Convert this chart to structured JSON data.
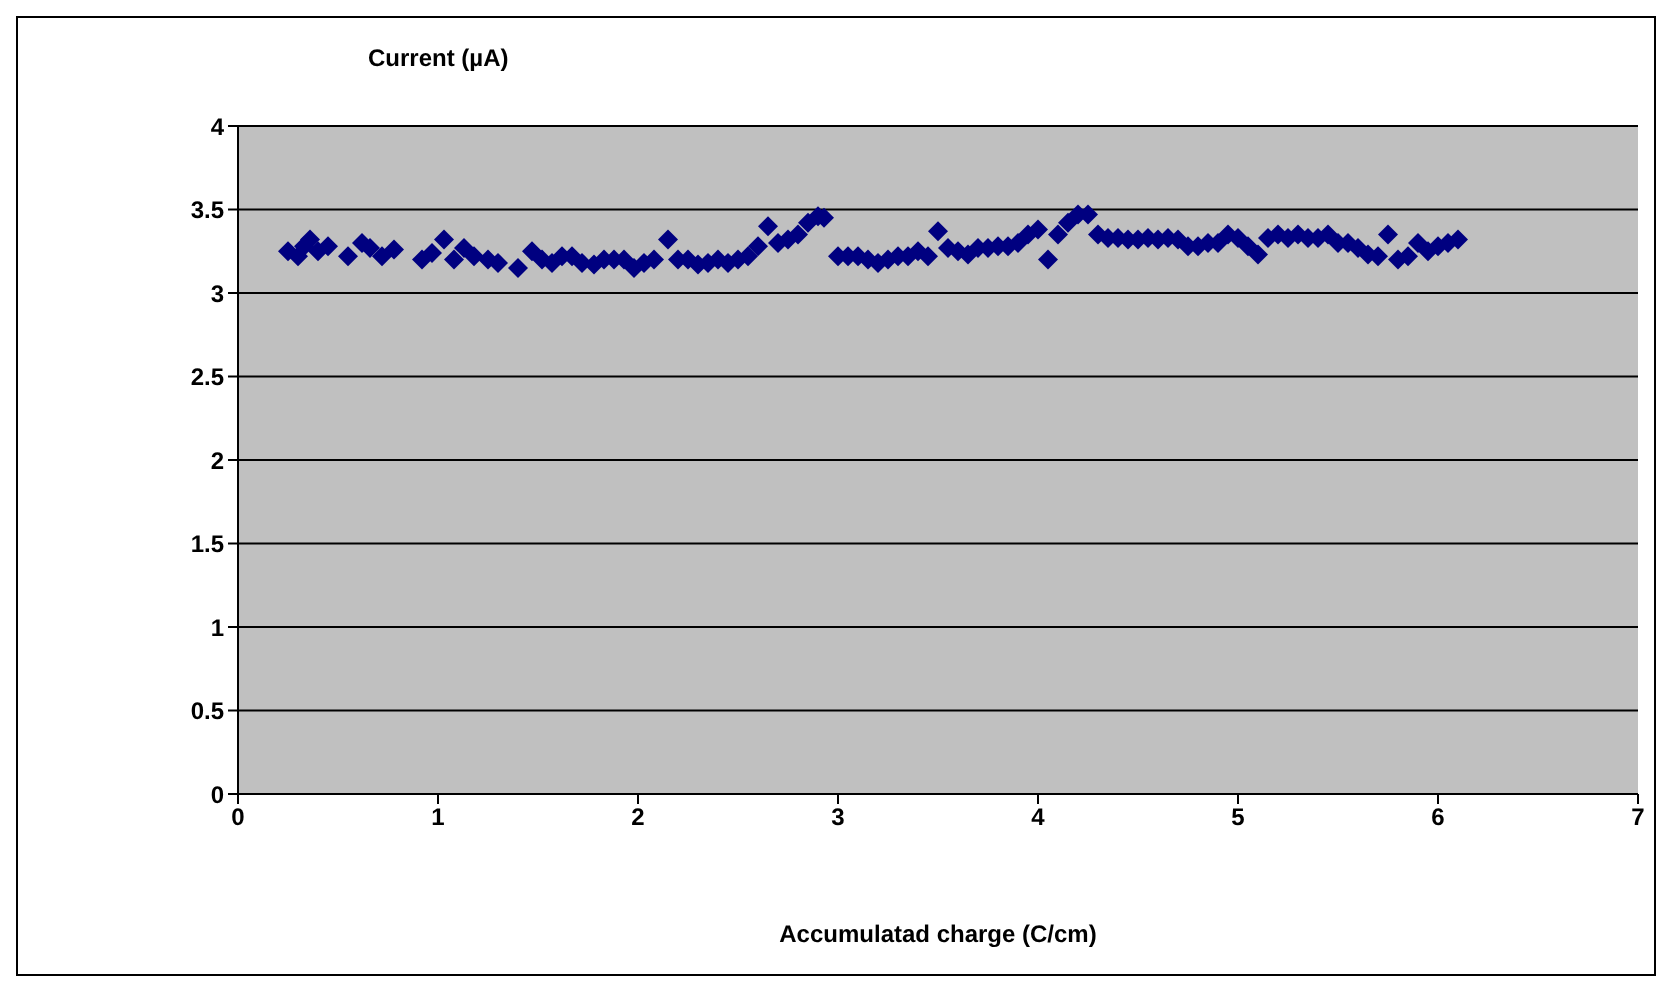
{
  "chart_data": {
    "type": "scatter",
    "title": "Current (µA)",
    "xlabel": "Accumulatad charge (C/cm)",
    "xlim": [
      0,
      7
    ],
    "xticks": [
      0,
      1,
      2,
      3,
      4,
      5,
      6,
      7
    ],
    "ylim": [
      0,
      4
    ],
    "yticks": [
      0,
      0.5,
      1,
      1.5,
      2,
      2.5,
      3,
      3.5,
      4
    ],
    "grid": "y",
    "legend": false,
    "marker": "diamond",
    "series": [
      {
        "color": "#000080",
        "x": [
          0.25,
          0.3,
          0.33,
          0.36,
          0.4,
          0.45,
          0.55,
          0.62,
          0.66,
          0.72,
          0.78,
          0.92,
          0.97,
          1.03,
          1.08,
          1.13,
          1.18,
          1.25,
          1.3,
          1.4,
          1.47,
          1.52,
          1.57,
          1.62,
          1.67,
          1.72,
          1.78,
          1.83,
          1.88,
          1.93,
          1.98,
          2.03,
          2.08,
          2.15,
          2.2,
          2.25,
          2.3,
          2.35,
          2.4,
          2.45,
          2.5,
          2.55,
          2.6,
          2.65,
          2.7,
          2.75,
          2.8,
          2.85,
          2.9,
          2.93,
          3.0,
          3.05,
          3.1,
          3.15,
          3.2,
          3.25,
          3.3,
          3.35,
          3.4,
          3.45,
          3.5,
          3.55,
          3.6,
          3.65,
          3.7,
          3.75,
          3.8,
          3.85,
          3.9,
          3.95,
          4.0,
          4.05,
          4.1,
          4.15,
          4.2,
          4.25,
          4.3,
          4.35,
          4.4,
          4.45,
          4.5,
          4.55,
          4.6,
          4.65,
          4.7,
          4.75,
          4.8,
          4.85,
          4.9,
          4.95,
          5.0,
          5.05,
          5.1,
          5.15,
          5.2,
          5.25,
          5.3,
          5.35,
          5.4,
          5.45,
          5.5,
          5.55,
          5.6,
          5.65,
          5.7,
          5.75,
          5.8,
          5.85,
          5.9,
          5.95,
          6.0,
          6.05,
          6.1
        ],
        "values": [
          3.25,
          3.22,
          3.28,
          3.32,
          3.25,
          3.28,
          3.22,
          3.3,
          3.27,
          3.22,
          3.26,
          3.2,
          3.24,
          3.32,
          3.2,
          3.27,
          3.22,
          3.2,
          3.18,
          3.15,
          3.25,
          3.2,
          3.18,
          3.22,
          3.22,
          3.18,
          3.17,
          3.2,
          3.2,
          3.2,
          3.15,
          3.18,
          3.2,
          3.32,
          3.2,
          3.2,
          3.17,
          3.18,
          3.2,
          3.18,
          3.2,
          3.22,
          3.28,
          3.4,
          3.3,
          3.32,
          3.35,
          3.42,
          3.46,
          3.45,
          3.22,
          3.22,
          3.22,
          3.2,
          3.18,
          3.2,
          3.22,
          3.22,
          3.25,
          3.22,
          3.37,
          3.27,
          3.25,
          3.23,
          3.27,
          3.27,
          3.28,
          3.28,
          3.3,
          3.35,
          3.38,
          3.2,
          3.35,
          3.42,
          3.47,
          3.47,
          3.35,
          3.33,
          3.33,
          3.32,
          3.32,
          3.33,
          3.32,
          3.33,
          3.32,
          3.28,
          3.28,
          3.3,
          3.3,
          3.35,
          3.33,
          3.28,
          3.23,
          3.33,
          3.35,
          3.33,
          3.35,
          3.33,
          3.33,
          3.35,
          3.3,
          3.3,
          3.27,
          3.23,
          3.22,
          3.35,
          3.2,
          3.22,
          3.3,
          3.25,
          3.28,
          3.3,
          3.32
        ]
      }
    ]
  }
}
